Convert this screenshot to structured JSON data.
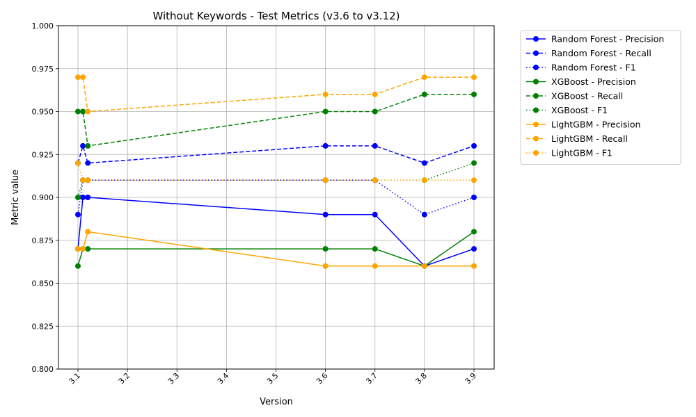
{
  "chart_data": {
    "type": "line",
    "title": "Without Keywords - Test Metrics (v3.6 to v3.12)",
    "xlabel": "Version",
    "ylabel": "Metric value",
    "ylim": [
      0.8,
      1.0
    ],
    "xlim": [
      3.1,
      3.9
    ],
    "grid": true,
    "legend_position": "outside-right",
    "x_ticks": [
      "3.1",
      "3.2",
      "3.3",
      "3.4",
      "3.5",
      "3.6",
      "3.7",
      "3.8",
      "3.9"
    ],
    "x_tick_values": [
      3.1,
      3.2,
      3.3,
      3.4,
      3.5,
      3.6,
      3.7,
      3.8,
      3.9
    ],
    "y_ticks": [
      "0.800",
      "0.825",
      "0.850",
      "0.875",
      "0.900",
      "0.925",
      "0.950",
      "0.975",
      "1.000"
    ],
    "y_tick_values": [
      0.8,
      0.825,
      0.85,
      0.875,
      0.9,
      0.925,
      0.95,
      0.975,
      1.0
    ],
    "x": [
      3.1,
      3.11,
      3.12,
      3.6,
      3.7,
      3.8,
      3.9
    ],
    "series": [
      {
        "name": "Random Forest - Precision",
        "color": "#0000ff",
        "style": "solid",
        "values": [
          0.87,
          0.9,
          0.9,
          0.89,
          0.89,
          0.86,
          0.87
        ]
      },
      {
        "name": "Random Forest - Recall",
        "color": "#0000ff",
        "style": "dashed",
        "values": [
          0.92,
          0.93,
          0.92,
          0.93,
          0.93,
          0.92,
          0.93
        ]
      },
      {
        "name": "Random Forest - F1",
        "color": "#0000ff",
        "style": "dotted",
        "values": [
          0.89,
          0.91,
          0.91,
          0.91,
          0.91,
          0.89,
          0.9
        ]
      },
      {
        "name": "XGBoost - Precision",
        "color": "#008000",
        "style": "solid",
        "values": [
          0.86,
          0.87,
          0.87,
          0.87,
          0.87,
          0.86,
          0.88
        ]
      },
      {
        "name": "XGBoost - Recall",
        "color": "#008000",
        "style": "dashed",
        "values": [
          0.95,
          0.95,
          0.93,
          0.95,
          0.95,
          0.96,
          0.96
        ]
      },
      {
        "name": "XGBoost - F1",
        "color": "#008000",
        "style": "dotted",
        "values": [
          0.9,
          0.91,
          0.91,
          0.91,
          0.91,
          0.91,
          0.92
        ]
      },
      {
        "name": "LightGBM - Precision",
        "color": "#ffa500",
        "style": "solid",
        "values": [
          0.87,
          0.87,
          0.88,
          0.86,
          0.86,
          0.86,
          0.86
        ]
      },
      {
        "name": "LightGBM - Recall",
        "color": "#ffa500",
        "style": "dashed",
        "values": [
          0.97,
          0.97,
          0.95,
          0.96,
          0.96,
          0.97,
          0.97
        ]
      },
      {
        "name": "LightGBM - F1",
        "color": "#ffa500",
        "style": "dotted",
        "values": [
          0.92,
          0.91,
          0.91,
          0.91,
          0.91,
          0.91,
          0.91
        ]
      }
    ]
  }
}
